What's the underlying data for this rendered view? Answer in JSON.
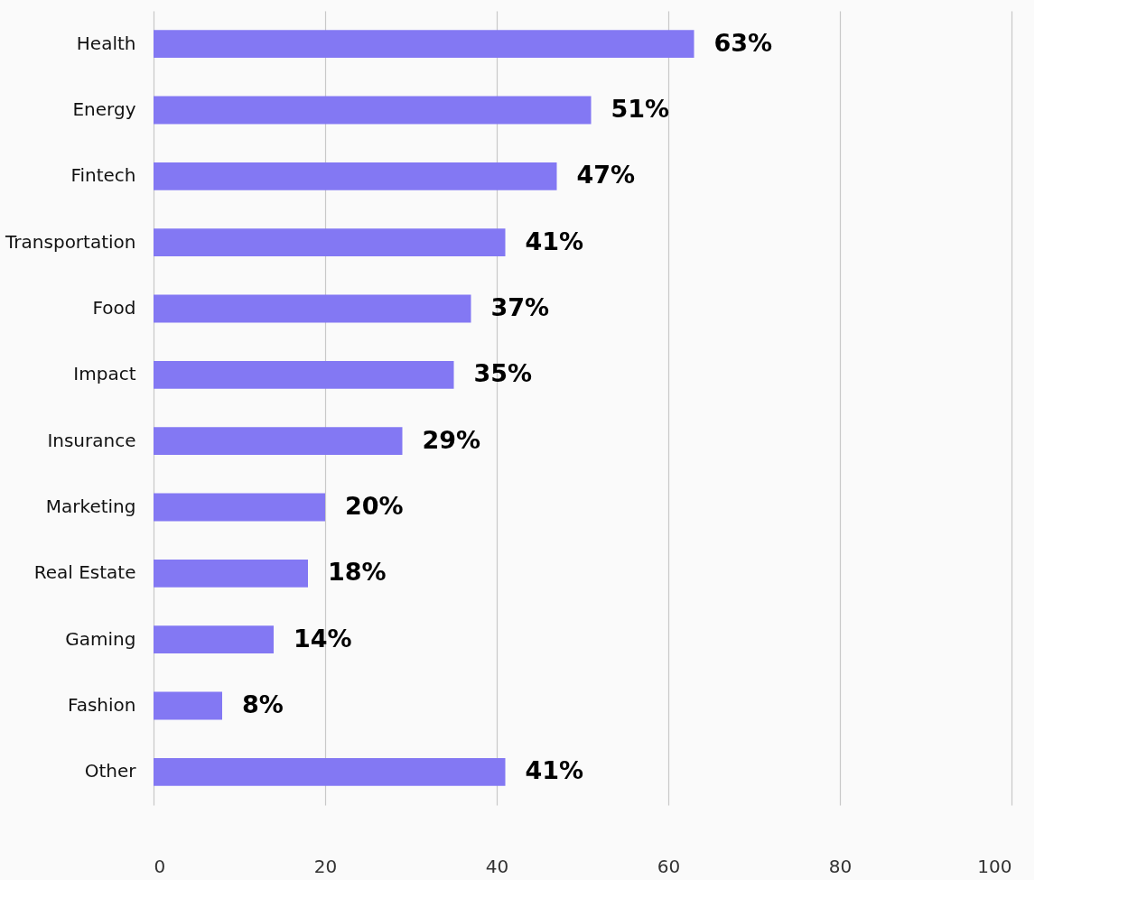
{
  "chart_data": {
    "type": "bar",
    "orientation": "horizontal",
    "categories": [
      "Health",
      "Energy",
      "Fintech",
      "Transportation",
      "Food",
      "Impact",
      "Insurance",
      "Marketing",
      "Real Estate",
      "Gaming",
      "Fashion",
      "Other"
    ],
    "values": [
      63,
      51,
      47,
      41,
      37,
      35,
      29,
      20,
      18,
      14,
      8,
      41
    ],
    "value_labels": [
      "63%",
      "51%",
      "47%",
      "41%",
      "37%",
      "35%",
      "29%",
      "20%",
      "18%",
      "14%",
      "8%",
      "41%"
    ],
    "color": "#8378f3",
    "xlim": [
      0,
      100
    ],
    "xticks": [
      0,
      20,
      40,
      60,
      80,
      100
    ],
    "grid": "x"
  }
}
